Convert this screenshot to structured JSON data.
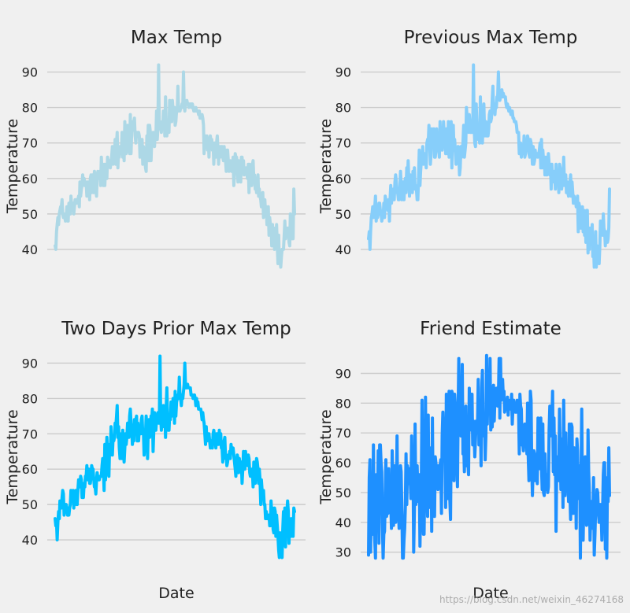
{
  "figure": {
    "background": "#f0f0f0",
    "grid_color": "#cbcbcb",
    "watermark": "https://blog.csdn.net/weixin_46274168"
  },
  "chart_data": [
    {
      "type": "line",
      "title": "Max Temp",
      "xlabel": "",
      "ylabel": "Temperature",
      "ylim": [
        34,
        93
      ],
      "yticks": [
        40,
        50,
        60,
        70,
        80,
        90
      ],
      "color": "#add8e6",
      "n_points": 348,
      "anchors": [
        [
          0,
          44
        ],
        [
          8,
          51
        ],
        [
          18,
          50
        ],
        [
          28,
          52
        ],
        [
          40,
          57
        ],
        [
          55,
          58
        ],
        [
          70,
          60
        ],
        [
          85,
          70
        ],
        [
          100,
          69
        ],
        [
          115,
          72
        ],
        [
          130,
          67
        ],
        [
          145,
          74
        ],
        [
          160,
          75
        ],
        [
          175,
          78
        ],
        [
          185,
          80
        ],
        [
          195,
          81
        ],
        [
          205,
          79
        ],
        [
          215,
          76
        ],
        [
          220,
          69
        ],
        [
          230,
          69
        ],
        [
          245,
          66
        ],
        [
          260,
          63
        ],
        [
          275,
          61
        ],
        [
          285,
          60
        ],
        [
          292,
          59
        ],
        [
          300,
          52
        ],
        [
          310,
          48
        ],
        [
          318,
          44
        ],
        [
          325,
          40
        ],
        [
          335,
          43
        ],
        [
          347,
          46
        ]
      ],
      "range_anchors": [
        [
          0,
          4
        ],
        [
          40,
          8
        ],
        [
          80,
          10
        ],
        [
          120,
          12
        ],
        [
          170,
          9
        ],
        [
          185,
          2
        ],
        [
          212,
          2
        ],
        [
          225,
          6
        ],
        [
          260,
          8
        ],
        [
          300,
          8
        ],
        [
          347,
          10
        ]
      ],
      "fixed": [
        [
          1,
          40
        ],
        [
          2,
          45
        ],
        [
          150,
          92
        ],
        [
          160,
          83
        ],
        [
          178,
          86
        ],
        [
          186,
          90
        ],
        [
          216,
          67
        ],
        [
          310,
          44
        ],
        [
          325,
          36
        ],
        [
          327,
          35
        ],
        [
          333,
          48
        ],
        [
          340,
          41
        ],
        [
          346,
          57
        ]
      ]
    },
    {
      "type": "line",
      "title": "Previous Max Temp",
      "xlabel": "",
      "ylabel": "Temperature",
      "ylim": [
        34,
        93
      ],
      "yticks": [
        40,
        50,
        60,
        70,
        80,
        90
      ],
      "color": "#87cefa",
      "n_points": 348,
      "anchors": [
        [
          0,
          44
        ],
        [
          8,
          51
        ],
        [
          18,
          50
        ],
        [
          28,
          52
        ],
        [
          40,
          57
        ],
        [
          55,
          58
        ],
        [
          70,
          60
        ],
        [
          85,
          70
        ],
        [
          100,
          69
        ],
        [
          115,
          72
        ],
        [
          130,
          67
        ],
        [
          145,
          74
        ],
        [
          160,
          75
        ],
        [
          175,
          78
        ],
        [
          185,
          82
        ],
        [
          192,
          84
        ],
        [
          202,
          80
        ],
        [
          212,
          76
        ],
        [
          220,
          69
        ],
        [
          230,
          69
        ],
        [
          245,
          66
        ],
        [
          260,
          63
        ],
        [
          275,
          61
        ],
        [
          285,
          60
        ],
        [
          292,
          59
        ],
        [
          300,
          52
        ],
        [
          310,
          48
        ],
        [
          318,
          44
        ],
        [
          325,
          40
        ],
        [
          335,
          43
        ],
        [
          347,
          48
        ]
      ],
      "range_anchors": [
        [
          0,
          4
        ],
        [
          40,
          8
        ],
        [
          80,
          10
        ],
        [
          120,
          12
        ],
        [
          170,
          9
        ],
        [
          188,
          2
        ],
        [
          212,
          2
        ],
        [
          225,
          6
        ],
        [
          260,
          8
        ],
        [
          300,
          8
        ],
        [
          347,
          10
        ]
      ],
      "fixed": [
        [
          2,
          40
        ],
        [
          3,
          45
        ],
        [
          151,
          92
        ],
        [
          161,
          83
        ],
        [
          179,
          86
        ],
        [
          187,
          90
        ],
        [
          217,
          67
        ],
        [
          311,
          44
        ],
        [
          326,
          36
        ],
        [
          328,
          35
        ],
        [
          334,
          48
        ],
        [
          341,
          41
        ],
        [
          347,
          57
        ]
      ]
    },
    {
      "type": "line",
      "title": "Two Days Prior Max Temp",
      "xlabel": "Date",
      "ylabel": "Temperature",
      "ylim": [
        34,
        93
      ],
      "yticks": [
        40,
        50,
        60,
        70,
        80,
        90
      ],
      "color": "#00bfff",
      "n_points": 348,
      "anchors": [
        [
          0,
          44
        ],
        [
          8,
          51
        ],
        [
          18,
          50
        ],
        [
          28,
          52
        ],
        [
          40,
          57
        ],
        [
          55,
          58
        ],
        [
          70,
          60
        ],
        [
          85,
          70
        ],
        [
          100,
          69
        ],
        [
          115,
          72
        ],
        [
          130,
          67
        ],
        [
          145,
          74
        ],
        [
          160,
          75
        ],
        [
          175,
          78
        ],
        [
          185,
          82
        ],
        [
          192,
          84
        ],
        [
          202,
          80
        ],
        [
          212,
          76
        ],
        [
          220,
          69
        ],
        [
          230,
          69
        ],
        [
          245,
          66
        ],
        [
          260,
          63
        ],
        [
          275,
          61
        ],
        [
          285,
          60
        ],
        [
          292,
          59
        ],
        [
          300,
          52
        ],
        [
          310,
          48
        ],
        [
          318,
          44
        ],
        [
          325,
          40
        ],
        [
          335,
          43
        ],
        [
          347,
          47
        ]
      ],
      "range_anchors": [
        [
          0,
          4
        ],
        [
          40,
          8
        ],
        [
          80,
          10
        ],
        [
          120,
          12
        ],
        [
          170,
          9
        ],
        [
          188,
          2
        ],
        [
          212,
          2
        ],
        [
          225,
          6
        ],
        [
          260,
          8
        ],
        [
          300,
          8
        ],
        [
          347,
          10
        ]
      ],
      "fixed": [
        [
          3,
          40
        ],
        [
          4,
          45
        ],
        [
          152,
          92
        ],
        [
          162,
          83
        ],
        [
          180,
          86
        ],
        [
          188,
          90
        ],
        [
          218,
          67
        ],
        [
          312,
          44
        ],
        [
          327,
          36
        ],
        [
          329,
          35
        ],
        [
          335,
          48
        ],
        [
          342,
          41
        ],
        [
          347,
          48
        ]
      ]
    },
    {
      "type": "line",
      "title": "Friend Estimate",
      "xlabel": "Date",
      "ylabel": "Temperature",
      "ylim": [
        27,
        97
      ],
      "yticks": [
        30,
        40,
        50,
        60,
        70,
        80,
        90
      ],
      "color": "#1e90ff",
      "n_points": 348,
      "anchors": [
        [
          0,
          44
        ],
        [
          10,
          46
        ],
        [
          25,
          48
        ],
        [
          40,
          49
        ],
        [
          55,
          52
        ],
        [
          70,
          54
        ],
        [
          85,
          58
        ],
        [
          100,
          60
        ],
        [
          115,
          64
        ],
        [
          130,
          68
        ],
        [
          145,
          72
        ],
        [
          160,
          76
        ],
        [
          175,
          78
        ],
        [
          185,
          80
        ],
        [
          192,
          83
        ],
        [
          200,
          80
        ],
        [
          212,
          76
        ],
        [
          220,
          72
        ],
        [
          240,
          67
        ],
        [
          260,
          64
        ],
        [
          280,
          60
        ],
        [
          300,
          55
        ],
        [
          310,
          50
        ],
        [
          320,
          48
        ],
        [
          335,
          47
        ],
        [
          347,
          50
        ]
      ],
      "range_anchors": [
        [
          0,
          30
        ],
        [
          60,
          36
        ],
        [
          120,
          40
        ],
        [
          170,
          30
        ],
        [
          180,
          14
        ],
        [
          200,
          8
        ],
        [
          215,
          14
        ],
        [
          225,
          30
        ],
        [
          300,
          36
        ],
        [
          347,
          36
        ]
      ],
      "fixed": [
        [
          0,
          29
        ],
        [
          2,
          61
        ],
        [
          10,
          28
        ],
        [
          175,
          95
        ],
        [
          188,
          95
        ],
        [
          190,
          95
        ],
        [
          325,
          29
        ],
        [
          346,
          65
        ]
      ]
    }
  ]
}
